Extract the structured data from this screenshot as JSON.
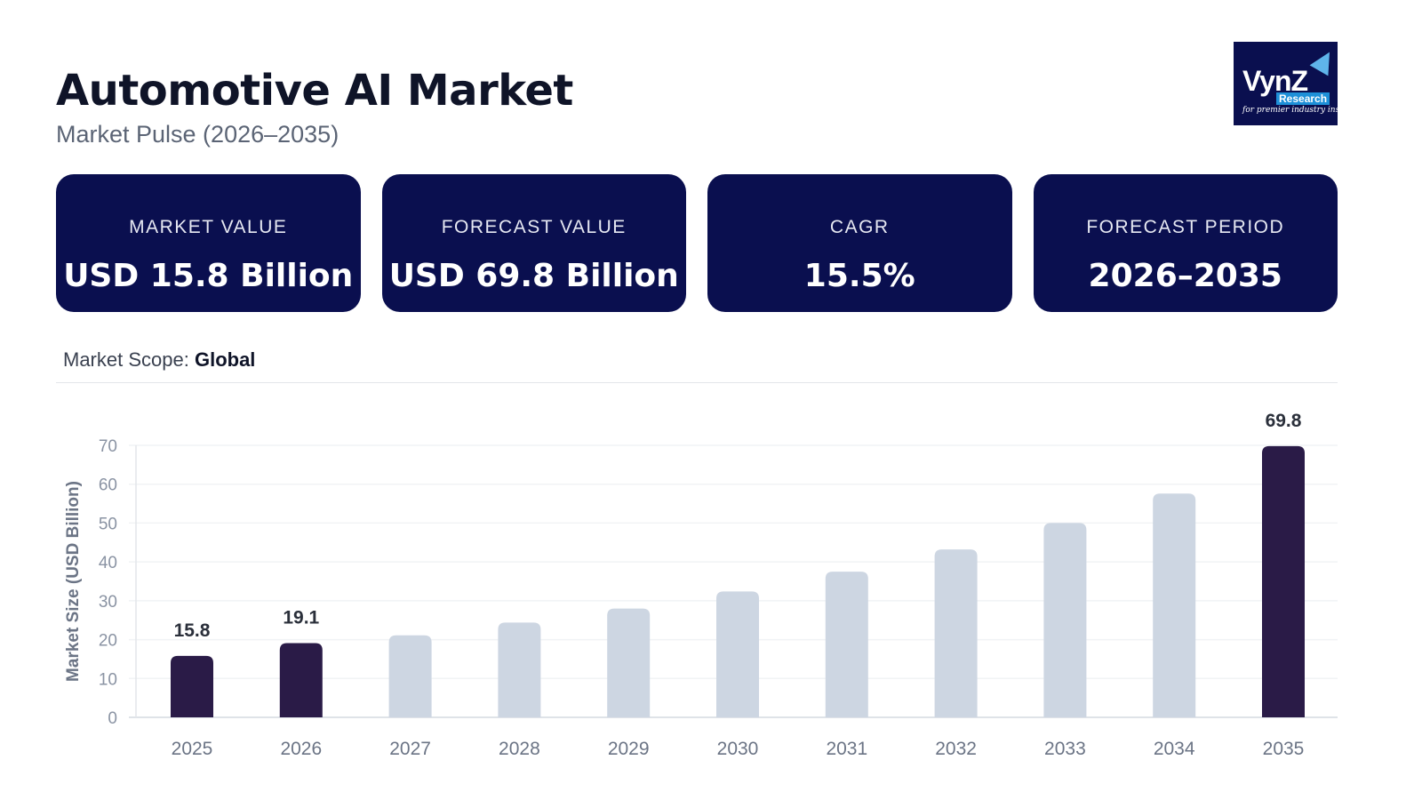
{
  "header": {
    "title": "Automotive AI Market",
    "subtitle": "Market Pulse (2026–2035)"
  },
  "logo": {
    "text": "VynZ",
    "sub": "Research",
    "tagline": "for premier industry insights"
  },
  "cards": [
    {
      "label": "MARKET VALUE",
      "value": "USD 15.8 Billion"
    },
    {
      "label": "FORECAST VALUE",
      "value": "USD 69.8 Billion"
    },
    {
      "label": "CAGR",
      "value": "15.5%"
    },
    {
      "label": "FORECAST PERIOD",
      "value": "2026–2035"
    }
  ],
  "scope": {
    "label": "Market Scope:",
    "value": "Global"
  },
  "chart_data": {
    "type": "bar",
    "categories": [
      "2025",
      "2026",
      "2027",
      "2028",
      "2029",
      "2030",
      "2031",
      "2032",
      "2033",
      "2034",
      "2035"
    ],
    "values": [
      15.8,
      19.1,
      21.1,
      24.4,
      28.0,
      32.4,
      37.5,
      43.2,
      50.0,
      57.6,
      69.8
    ],
    "data_labels": {
      "0": "15.8",
      "1": "19.1",
      "10": "69.8"
    },
    "highlighted": [
      0,
      1,
      10
    ],
    "ylabel": "Market Size (USD Billion)",
    "ylim": [
      0,
      70
    ],
    "yticks": [
      0,
      10,
      20,
      30,
      40,
      50,
      60,
      70
    ],
    "grid": true,
    "colors": {
      "highlight": "#2a1b47",
      "normal": "#cdd6e2"
    }
  }
}
